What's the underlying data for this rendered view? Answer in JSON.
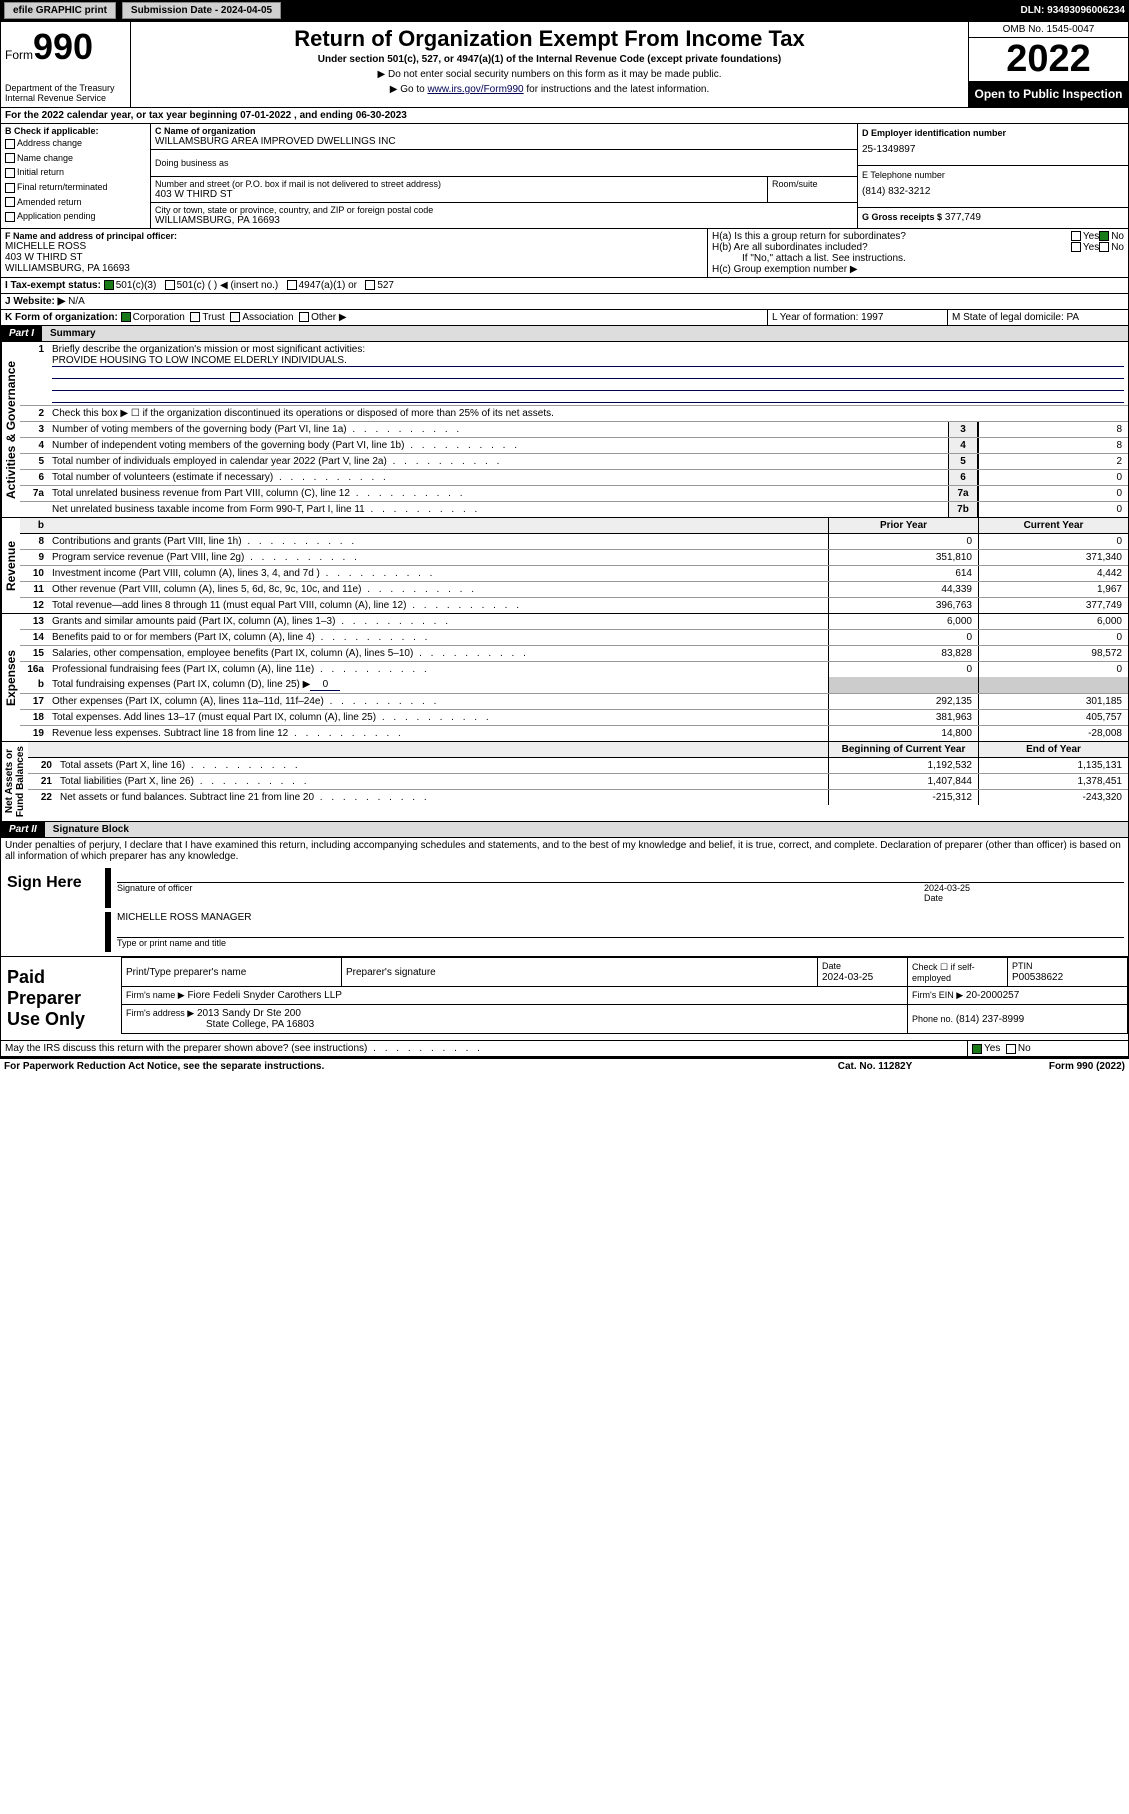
{
  "topbar": {
    "efile": "efile GRAPHIC print",
    "subdate_lbl": "Submission Date - 2024-04-05",
    "dln_lbl": "DLN: 93493096006234"
  },
  "header": {
    "form_word": "Form",
    "form_no": "990",
    "title": "Return of Organization Exempt From Income Tax",
    "subtitle": "Under section 501(c), 527, or 4947(a)(1) of the Internal Revenue Code (except private foundations)",
    "note1": "▶ Do not enter social security numbers on this form as it may be made public.",
    "note2_pre": "▶ Go to ",
    "note2_link": "www.irs.gov/Form990",
    "note2_post": " for instructions and the latest information.",
    "dept": "Department of the Treasury\nInternal Revenue Service",
    "omb": "OMB No. 1545-0047",
    "year": "2022",
    "otp": "Open to Public Inspection"
  },
  "a": {
    "text": "For the 2022 calendar year, or tax year beginning 07-01-2022    , and ending 06-30-2023"
  },
  "b": {
    "label": "B Check if applicable:",
    "opts": [
      "Address change",
      "Name change",
      "Initial return",
      "Final return/terminated",
      "Amended return",
      "Application pending"
    ]
  },
  "c": {
    "label": "C Name of organization",
    "name": "WILLAMSBURG AREA IMPROVED DWELLINGS INC",
    "dba": "Doing business as",
    "addr_lbl": "Number and street (or P.O. box if mail is not delivered to street address)",
    "room_lbl": "Room/suite",
    "addr": "403 W THIRD ST",
    "city_lbl": "City or town, state or province, country, and ZIP or foreign postal code",
    "city": "WILLIAMSBURG, PA  16693"
  },
  "d": {
    "label": "D Employer identification number",
    "val": "25-1349897"
  },
  "e": {
    "label": "E Telephone number",
    "val": "(814) 832-3212"
  },
  "g": {
    "label": "G Gross receipts $",
    "val": "377,749"
  },
  "f": {
    "label": "F Name and address of principal officer:",
    "name": "MICHELLE ROSS",
    "addr1": "403 W THIRD ST",
    "addr2": "WILLIAMSBURG, PA  16693"
  },
  "h": {
    "a": "H(a)  Is this a group return for subordinates?",
    "b": "H(b)  Are all subordinates included?",
    "b2": "If \"No,\" attach a list. See instructions.",
    "c": "H(c)  Group exemption number ▶",
    "yes": "Yes",
    "no": "No"
  },
  "i": {
    "label": "I    Tax-exempt status:",
    "o1": "501(c)(3)",
    "o2": "501(c) (  ) ◀ (insert no.)",
    "o3": "4947(a)(1) or",
    "o4": "527"
  },
  "j": {
    "label": "J   Website: ▶",
    "val": "N/A"
  },
  "k": {
    "label": "K Form of organization:",
    "o1": "Corporation",
    "o2": "Trust",
    "o3": "Association",
    "o4": "Other ▶"
  },
  "l": {
    "label": "L Year of formation: 1997"
  },
  "m": {
    "label": "M State of legal domicile: PA"
  },
  "part1": {
    "lbl": "Part I",
    "title": "Summary"
  },
  "summary": {
    "q1_lbl": "Briefly describe the organization's mission or most significant activities:",
    "q1_ans": "PROVIDE HOUSING TO LOW INCOME ELDERLY INDIVIDUALS.",
    "q2": "Check this box ▶ ☐  if the organization discontinued its operations or disposed of more than 25% of its net assets.",
    "lines_single": [
      {
        "no": "3",
        "txt": "Number of voting members of the governing body (Part VI, line 1a)",
        "box": "3",
        "val": "8"
      },
      {
        "no": "4",
        "txt": "Number of independent voting members of the governing body (Part VI, line 1b)",
        "box": "4",
        "val": "8"
      },
      {
        "no": "5",
        "txt": "Total number of individuals employed in calendar year 2022 (Part V, line 2a)",
        "box": "5",
        "val": "2"
      },
      {
        "no": "6",
        "txt": "Total number of volunteers (estimate if necessary)",
        "box": "6",
        "val": "0"
      },
      {
        "no": "7a",
        "txt": "Total unrelated business revenue from Part VIII, column (C), line 12",
        "box": "7a",
        "val": "0"
      },
      {
        "no": "",
        "txt": "Net unrelated business taxable income from Form 990-T, Part I, line 11",
        "box": "7b",
        "val": "0"
      }
    ],
    "th_prior": "Prior Year",
    "th_cur": "Current Year",
    "rev": [
      {
        "no": "8",
        "txt": "Contributions and grants (Part VIII, line 1h)",
        "p": "0",
        "c": "0"
      },
      {
        "no": "9",
        "txt": "Program service revenue (Part VIII, line 2g)",
        "p": "351,810",
        "c": "371,340"
      },
      {
        "no": "10",
        "txt": "Investment income (Part VIII, column (A), lines 3, 4, and 7d )",
        "p": "614",
        "c": "4,442"
      },
      {
        "no": "11",
        "txt": "Other revenue (Part VIII, column (A), lines 5, 6d, 8c, 9c, 10c, and 11e)",
        "p": "44,339",
        "c": "1,967"
      },
      {
        "no": "12",
        "txt": "Total revenue—add lines 8 through 11 (must equal Part VIII, column (A), line 12)",
        "p": "396,763",
        "c": "377,749"
      }
    ],
    "exp": [
      {
        "no": "13",
        "txt": "Grants and similar amounts paid (Part IX, column (A), lines 1–3)",
        "p": "6,000",
        "c": "6,000"
      },
      {
        "no": "14",
        "txt": "Benefits paid to or for members (Part IX, column (A), line 4)",
        "p": "0",
        "c": "0"
      },
      {
        "no": "15",
        "txt": "Salaries, other compensation, employee benefits (Part IX, column (A), lines 5–10)",
        "p": "83,828",
        "c": "98,572"
      },
      {
        "no": "16a",
        "txt": "Professional fundraising fees (Part IX, column (A), line 11e)",
        "p": "0",
        "c": "0"
      }
    ],
    "exp_b": {
      "no": "b",
      "txt": "Total fundraising expenses (Part IX, column (D), line 25) ▶",
      "val": "0"
    },
    "exp2": [
      {
        "no": "17",
        "txt": "Other expenses (Part IX, column (A), lines 11a–11d, 11f–24e)",
        "p": "292,135",
        "c": "301,185"
      },
      {
        "no": "18",
        "txt": "Total expenses. Add lines 13–17 (must equal Part IX, column (A), line 25)",
        "p": "381,963",
        "c": "405,757"
      },
      {
        "no": "19",
        "txt": "Revenue less expenses. Subtract line 18 from line 12",
        "p": "14,800",
        "c": "-28,008"
      }
    ],
    "th_beg": "Beginning of Current Year",
    "th_end": "End of Year",
    "net": [
      {
        "no": "20",
        "txt": "Total assets (Part X, line 16)",
        "p": "1,192,532",
        "c": "1,135,131"
      },
      {
        "no": "21",
        "txt": "Total liabilities (Part X, line 26)",
        "p": "1,407,844",
        "c": "1,378,451"
      },
      {
        "no": "22",
        "txt": "Net assets or fund balances. Subtract line 21 from line 20",
        "p": "-215,312",
        "c": "-243,320"
      }
    ]
  },
  "part2": {
    "lbl": "Part II",
    "title": "Signature Block"
  },
  "penalty": "Under penalties of perjury, I declare that I have examined this return, including accompanying schedules and statements, and to the best of my knowledge and belief, it is true, correct, and complete. Declaration of preparer (other than officer) is based on all information of which preparer has any knowledge.",
  "sign": {
    "here": "Sign Here",
    "sigoff": "Signature of officer",
    "date": "2024-03-25",
    "datelbl": "Date",
    "name": "MICHELLE ROSS MANAGER",
    "typelbl": "Type or print name and title"
  },
  "prep": {
    "title": "Paid Preparer Use Only",
    "h1": "Print/Type preparer's name",
    "h2": "Preparer's signature",
    "h3": "Date",
    "h3v": "2024-03-25",
    "h4": "Check ☐ if self-employed",
    "h5": "PTIN",
    "h5v": "P00538622",
    "fn_lbl": "Firm's name   ▶",
    "fn": "Fiore Fedeli Snyder Carothers LLP",
    "ein_lbl": "Firm's EIN ▶",
    "ein": "20-2000257",
    "fa_lbl": "Firm's address ▶",
    "fa1": "2013 Sandy Dr Ste 200",
    "fa2": "State College, PA  16803",
    "ph_lbl": "Phone no.",
    "ph": "(814) 237-8999"
  },
  "discuss": {
    "txt": "May the IRS discuss this return with the preparer shown above? (see instructions)",
    "yes": "Yes",
    "no": "No"
  },
  "foot": {
    "l": "For Paperwork Reduction Act Notice, see the separate instructions.",
    "m": "Cat. No. 11282Y",
    "r": "Form 990 (2022)"
  }
}
